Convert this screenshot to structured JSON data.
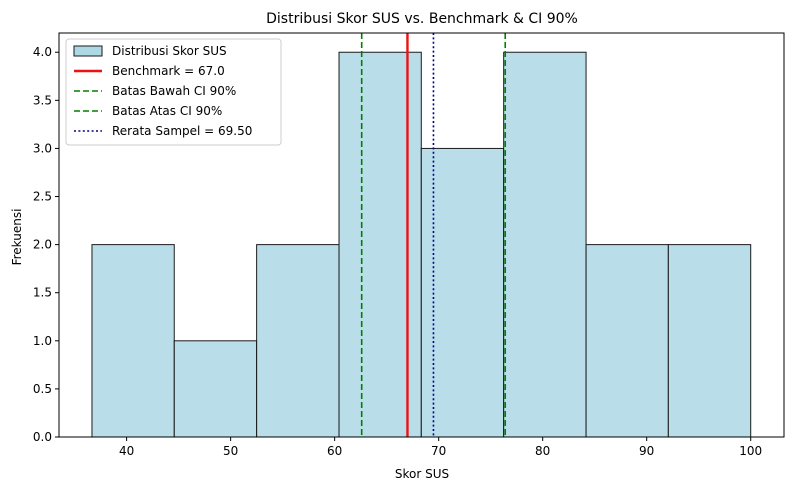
{
  "chart_data": {
    "type": "bar",
    "title": "Distribusi Skor SUS vs. Benchmark & CI 90%",
    "xlabel": "Skor SUS",
    "ylabel": "Frekuensi",
    "xlim": [
      33.5,
      103.2
    ],
    "ylim": [
      0,
      4.2
    ],
    "xticks": [
      40,
      50,
      60,
      70,
      80,
      90,
      100
    ],
    "yticks": [
      0.0,
      0.5,
      1.0,
      1.5,
      2.0,
      2.5,
      3.0,
      3.5,
      4.0
    ],
    "ytick_labels": [
      "0.0",
      "0.5",
      "1.0",
      "1.5",
      "2.0",
      "2.5",
      "3.0",
      "3.5",
      "4.0"
    ],
    "bins": [
      36.67,
      44.58,
      52.5,
      60.42,
      68.33,
      76.25,
      84.17,
      92.08,
      100.0
    ],
    "bin_edges": [
      36.67,
      44.58,
      52.5,
      60.42,
      68.33,
      76.25,
      84.17,
      92.08,
      100.0
    ],
    "counts": [
      2,
      1,
      2,
      4,
      3,
      4,
      2,
      2
    ],
    "bar_color": "#add8e6",
    "grid": false,
    "legend_position": "upper-left",
    "lines": [
      {
        "value": 67.0,
        "label": "Benchmark = 67.0",
        "color": "#ee1111",
        "style": "solid",
        "width": 2.4
      },
      {
        "value": 62.6,
        "label": "Batas Bawah CI 90%",
        "color": "#008000",
        "style": "dashed",
        "width": 1.6
      },
      {
        "value": 76.4,
        "label": "Batas Atas CI 90%",
        "color": "#008000",
        "style": "dashed",
        "width": 1.6
      },
      {
        "value": 69.5,
        "label": "Rerata Sampel = 69.50",
        "color": "#00008b",
        "style": "dotted",
        "width": 1.6
      }
    ],
    "legend": {
      "hist_label": "Distribusi Skor SUS"
    }
  }
}
